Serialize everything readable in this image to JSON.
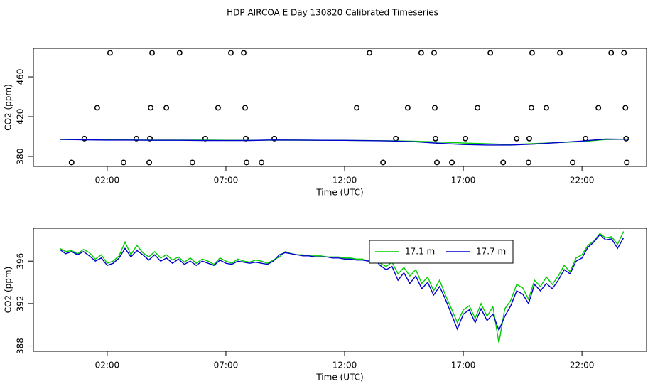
{
  "title": "HDP AIRCOA E  Day 130820  Calibrated Timeseries",
  "chart_data": [
    {
      "type": "line",
      "xlabel": "Time (UTC)",
      "ylabel": "CO2 (ppm)",
      "xlim": [
        -1.11,
        24.72
      ],
      "ylim": [
        370,
        488.6
      ],
      "xticks": [
        {
          "value": 2,
          "label": "02:00"
        },
        {
          "value": 7,
          "label": "07:00"
        },
        {
          "value": 12,
          "label": "12:00"
        },
        {
          "value": 17,
          "label": "17:00"
        },
        {
          "value": 22,
          "label": "22:00"
        }
      ],
      "yticks": [
        380,
        420,
        460
      ],
      "series": [
        {
          "type": "scatter",
          "color": "#000000",
          "x": [
            2.12,
            3.89,
            5.05,
            7.21,
            7.75,
            13.05,
            15.23,
            15.77,
            18.14,
            19.9,
            21.07,
            23.23,
            23.77,
            1.58,
            3.83,
            4.49,
            6.67,
            7.81,
            12.51,
            14.66,
            15.8,
            17.6,
            19.87,
            20.5,
            22.69,
            23.83,
            1.04,
            3.23,
            3.8,
            6.13,
            7.84,
            9.04,
            14.16,
            15.83,
            17.09,
            19.25,
            19.78,
            22.15,
            23.86,
            0.5,
            2.69,
            3.77,
            5.59,
            7.87,
            8.5,
            13.62,
            15.89,
            16.52,
            18.68,
            19.75,
            21.61,
            23.89
          ],
          "values": [
            484,
            484,
            484,
            484,
            484,
            484,
            484,
            484,
            484,
            484,
            484,
            484,
            484,
            429,
            429,
            429,
            429,
            429,
            429,
            429,
            429,
            429,
            429,
            429,
            429,
            429,
            398,
            398,
            398,
            398,
            398,
            398,
            398,
            398,
            398,
            398,
            398,
            398,
            398,
            374,
            374,
            374,
            374,
            374,
            374,
            374,
            374,
            374,
            374,
            374,
            374,
            374
          ]
        },
        {
          "type": "line",
          "color": "#00cc00",
          "x": [
            0,
            1,
            2,
            3,
            4,
            5,
            6,
            7,
            8,
            9,
            10,
            11,
            12,
            13,
            14,
            15,
            16,
            17,
            18,
            19,
            20,
            21,
            22,
            23,
            24
          ],
          "values": [
            397,
            397,
            396.8,
            396.6,
            396.5,
            396.5,
            396.4,
            396.3,
            396.2,
            396.5,
            396.4,
            396.3,
            396.2,
            396,
            395.8,
            395.3,
            394.5,
            393.5,
            392.8,
            392,
            393,
            394,
            395,
            397,
            397.5
          ]
        },
        {
          "type": "line",
          "color": "#0000cc",
          "x": [
            0,
            1,
            2,
            3,
            4,
            5,
            6,
            7,
            8,
            9,
            10,
            11,
            12,
            13,
            14,
            15,
            16,
            17,
            18,
            19,
            20,
            21,
            22,
            23,
            24
          ],
          "values": [
            397.2,
            396.8,
            396.5,
            396.5,
            396.3,
            396.3,
            396.1,
            396,
            396.1,
            396.6,
            396.5,
            396.3,
            396.2,
            395.9,
            395.6,
            394.8,
            393.2,
            392,
            391.5,
            391.5,
            392.5,
            394,
            395.5,
            397.5,
            397.3
          ]
        }
      ]
    },
    {
      "type": "line",
      "xlabel": "Time (UTC)",
      "ylabel": "CO2 (ppm)",
      "legend": "top",
      "xlim": [
        -1.11,
        24.72
      ],
      "ylim": [
        387.5,
        399.1
      ],
      "xticks": [
        {
          "value": 2,
          "label": "02:00"
        },
        {
          "value": 7,
          "label": "07:00"
        },
        {
          "value": 12,
          "label": "12:00"
        },
        {
          "value": 17,
          "label": "17:00"
        },
        {
          "value": 22,
          "label": "22:00"
        }
      ],
      "yticks": [
        388,
        392,
        396
      ],
      "x": [
        0,
        0.25,
        0.5,
        0.75,
        1,
        1.25,
        1.5,
        1.75,
        2,
        2.25,
        2.5,
        2.75,
        3,
        3.25,
        3.5,
        3.75,
        4,
        4.25,
        4.5,
        4.75,
        5,
        5.25,
        5.5,
        5.75,
        6,
        6.25,
        6.5,
        6.75,
        7,
        7.25,
        7.5,
        7.75,
        8,
        8.25,
        8.5,
        8.75,
        9,
        9.25,
        9.5,
        9.75,
        10,
        10.25,
        10.5,
        10.75,
        11,
        11.25,
        11.5,
        11.75,
        12,
        12.25,
        12.5,
        12.75,
        13,
        13.25,
        13.5,
        13.75,
        14,
        14.25,
        14.5,
        14.75,
        15,
        15.25,
        15.5,
        15.75,
        16,
        16.25,
        16.5,
        16.75,
        17,
        17.25,
        17.5,
        17.75,
        18,
        18.25,
        18.5,
        18.75,
        19,
        19.25,
        19.5,
        19.75,
        20,
        20.25,
        20.5,
        20.75,
        21,
        21.25,
        21.5,
        21.75,
        22,
        22.25,
        22.5,
        22.75,
        23,
        23.25,
        23.5,
        23.75
      ],
      "series": [
        {
          "name": "17.1 m",
          "color": "#00cc00",
          "values": [
            397.2,
            396.9,
            397.0,
            396.7,
            397.1,
            396.8,
            396.2,
            396.6,
            395.8,
            396.0,
            396.5,
            397.8,
            396.6,
            397.5,
            396.8,
            396.4,
            396.9,
            396.3,
            396.6,
            396.1,
            396.4,
            395.9,
            396.3,
            395.8,
            396.2,
            396.0,
            395.7,
            396.3,
            396.0,
            395.8,
            396.2,
            396.0,
            395.9,
            396.1,
            396.0,
            395.8,
            396.1,
            396.4,
            396.9,
            396.7,
            396.6,
            396.6,
            396.5,
            396.5,
            396.5,
            396.4,
            396.4,
            396.4,
            396.3,
            396.3,
            396.2,
            396.2,
            396.0,
            396.4,
            395.8,
            395.5,
            395.9,
            394.8,
            395.4,
            394.6,
            395.2,
            393.9,
            394.5,
            393.2,
            394.2,
            392.8,
            391.5,
            390.2,
            391.4,
            391.8,
            390.6,
            392.0,
            390.8,
            391.7,
            388.3,
            391.5,
            392.3,
            393.8,
            393.5,
            392.4,
            394.2,
            393.6,
            394.5,
            393.8,
            394.6,
            395.6,
            395.0,
            396.3,
            396.6,
            397.5,
            397.9,
            398.6,
            398.2,
            398.3,
            397.6,
            398.8
          ]
        },
        {
          "name": "17.7 m",
          "color": "#0000cc",
          "values": [
            397.1,
            396.7,
            396.9,
            396.6,
            396.9,
            396.5,
            396.0,
            396.3,
            395.6,
            395.8,
            396.3,
            397.2,
            396.4,
            397.0,
            396.6,
            396.1,
            396.6,
            396.0,
            396.3,
            395.8,
            396.2,
            395.7,
            396.0,
            395.6,
            396.0,
            395.8,
            395.6,
            396.1,
            395.8,
            395.7,
            396.0,
            395.9,
            395.8,
            395.9,
            395.8,
            395.7,
            396.0,
            396.6,
            396.8,
            396.7,
            396.6,
            396.5,
            396.5,
            396.4,
            396.4,
            396.4,
            396.3,
            396.3,
            396.2,
            396.2,
            396.1,
            396.1,
            396.0,
            396.2,
            395.6,
            395.2,
            395.5,
            394.2,
            394.9,
            393.9,
            394.6,
            393.4,
            394.0,
            392.8,
            393.6,
            392.4,
            391.0,
            389.6,
            391.0,
            391.4,
            390.2,
            391.5,
            390.4,
            391.0,
            389.5,
            390.8,
            391.8,
            393.2,
            392.9,
            392.0,
            393.8,
            393.2,
            393.9,
            393.4,
            394.2,
            395.2,
            394.8,
            396.0,
            396.3,
            397.3,
            397.8,
            398.5,
            398.0,
            398.1,
            397.2,
            398.2
          ]
        }
      ]
    }
  ]
}
